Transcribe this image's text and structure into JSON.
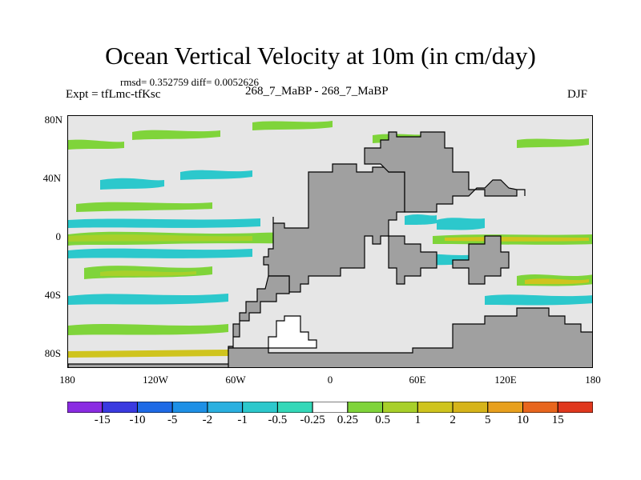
{
  "title": "Ocean Vertical Velocity at 10m (in cm/day)",
  "stats": "rmsd= 0.352759 diff= 0.0052626",
  "expt": "Expt = tfLmc-tfKsc",
  "subtitle": "268_7_MaBP - 268_7_MaBP",
  "season": "DJF",
  "axes": {
    "y_labels": [
      "80N",
      "40N",
      "0",
      "40S",
      "80S"
    ],
    "x_labels": [
      "180",
      "120W",
      "60W",
      "0",
      "60E",
      "120E",
      "180"
    ]
  },
  "colorbar": {
    "labels": [
      "-15",
      "-10",
      "-5",
      "-2",
      "-1",
      "-0.5",
      "-0.25",
      "0.25",
      "0.5",
      "1",
      "2",
      "5",
      "10",
      "15"
    ],
    "colors": [
      "#8a2be2",
      "#3a3ae0",
      "#1e6ae6",
      "#1e90e6",
      "#2ab0e0",
      "#2cc8cc",
      "#33d8b8",
      "#ffffff",
      "#7fd43a",
      "#a8d02a",
      "#cfc41e",
      "#e8a01e",
      "#e8661e",
      "#e0381e"
    ]
  },
  "land_color": "#a0a0a0",
  "ocean_color": "#e6e6e6"
}
